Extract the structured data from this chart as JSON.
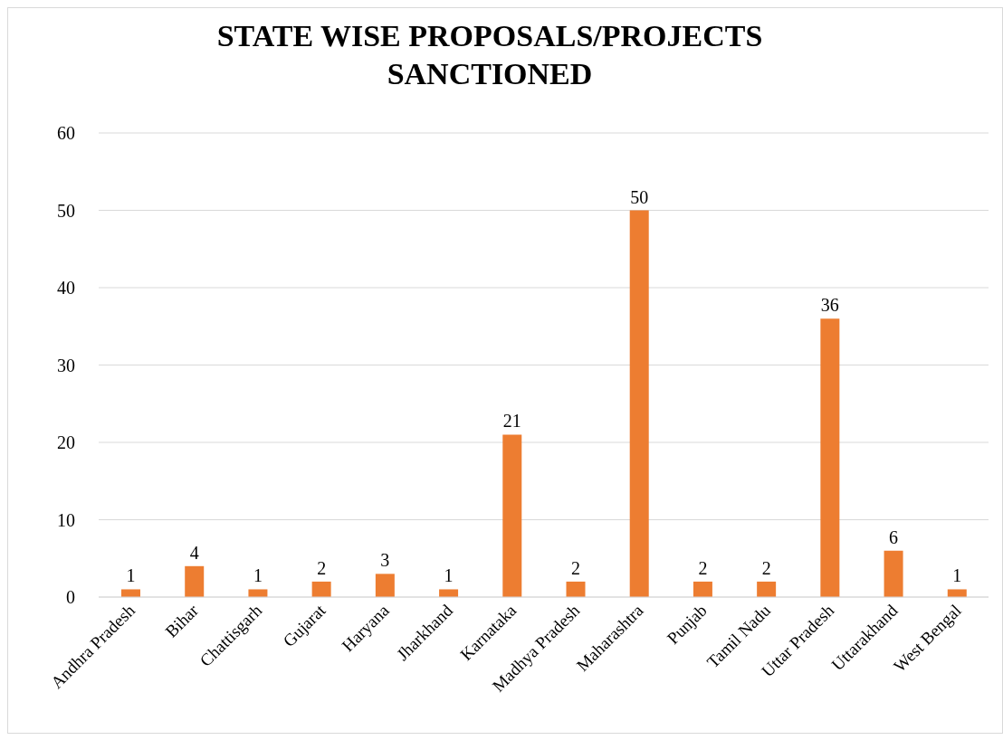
{
  "chart_data": {
    "type": "bar",
    "title": "STATE WISE PROPOSALS/PROJECTS SANCTIONED",
    "categories": [
      "Andhra Pradesh",
      "Bihar",
      "Chattisgarh",
      "Gujarat",
      "Haryana",
      "Jharkhand",
      "Karnataka",
      "Madhya Pradesh",
      "Maharashtra",
      "Punjab",
      "Tamil Nadu",
      "Uttar Pradesh",
      "Uttarakhand",
      "West Bengal"
    ],
    "values": [
      1,
      4,
      1,
      2,
      3,
      1,
      21,
      2,
      50,
      2,
      2,
      36,
      6,
      1
    ],
    "color": "#ed7d31",
    "ylim": [
      0,
      60
    ],
    "yticks": [
      0,
      10,
      20,
      30,
      40,
      50,
      60
    ],
    "grid": "y",
    "data_labels": true,
    "legend": false
  }
}
